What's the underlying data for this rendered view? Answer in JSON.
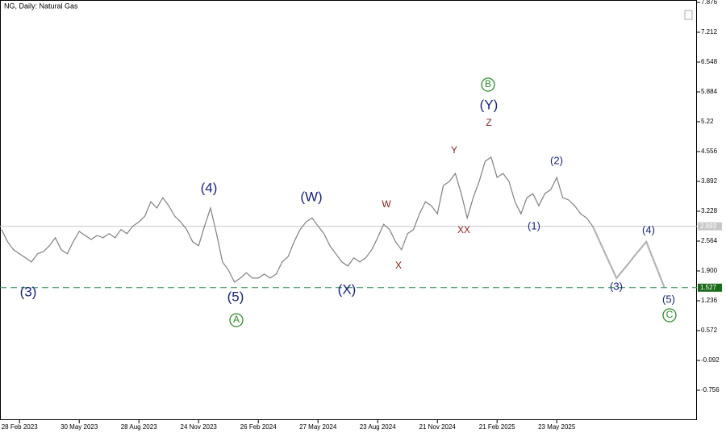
{
  "chart_data": {
    "type": "line",
    "title": "NG, Daily:  Natural Gas",
    "categories": [
      null,
      null,
      null,
      "28 Feb 2023",
      null,
      null,
      null,
      null,
      null,
      null,
      null,
      null,
      null,
      "30 May 2023",
      null,
      null,
      null,
      null,
      null,
      null,
      null,
      null,
      null,
      "28 Aug 2023",
      null,
      null,
      null,
      null,
      null,
      null,
      null,
      null,
      null,
      "24 Nov 2023",
      null,
      null,
      null,
      null,
      null,
      null,
      null,
      null,
      null,
      "26 Feb 2024",
      null,
      null,
      null,
      null,
      null,
      null,
      null,
      null,
      null,
      "27 May 2024",
      null,
      null,
      null,
      null,
      null,
      null,
      null,
      null,
      null,
      "23 Aug 2024",
      null,
      null,
      null,
      null,
      null,
      null,
      null,
      null,
      null,
      "21 Nov 2024",
      null,
      null,
      null,
      null,
      null,
      null,
      null,
      null,
      null,
      "21 Feb 2025",
      null,
      null,
      null,
      null,
      null,
      null,
      null,
      null,
      null,
      "23 May 2025",
      null,
      null,
      null,
      null,
      null,
      null,
      null,
      null,
      null,
      null,
      null,
      null,
      null,
      null,
      null,
      null,
      null,
      null
    ],
    "series": [
      {
        "color": "#808080",
        "values": [
          2.82,
          2.55,
          2.37,
          2.28,
          2.19,
          2.1,
          2.28,
          2.33,
          2.46,
          2.64,
          2.37,
          2.28,
          2.55,
          2.78,
          2.69,
          2.6,
          2.69,
          2.64,
          2.73,
          2.64,
          2.82,
          2.73,
          2.9,
          2.99,
          3.12,
          3.44,
          3.3,
          3.53,
          3.35,
          3.12,
          2.99,
          2.82,
          2.55,
          2.46,
          2.9,
          3.3,
          2.73,
          2.1,
          1.92,
          1.65,
          1.74,
          1.86,
          1.74,
          1.74,
          1.83,
          1.74,
          1.83,
          2.1,
          2.22,
          2.55,
          2.82,
          2.99,
          3.08,
          2.9,
          2.73,
          2.46,
          2.28,
          2.1,
          2.01,
          2.19,
          2.1,
          2.19,
          2.37,
          2.64,
          2.94,
          2.82,
          2.55,
          2.37,
          2.73,
          2.82,
          3.17,
          3.44,
          3.35,
          3.17,
          3.8,
          3.89,
          4.07,
          3.62,
          3.08,
          3.53,
          3.89,
          4.34,
          4.43,
          3.98,
          4.07,
          3.89,
          3.44,
          3.17,
          3.53,
          3.62,
          3.35,
          3.62,
          3.71,
          3.98,
          3.53,
          3.48,
          3.35,
          3.17,
          3.08,
          2.9,
          null,
          null,
          null,
          null,
          null,
          null,
          null,
          null,
          null,
          null,
          null,
          null
        ]
      },
      {
        "color": "#b4b4b4",
        "values": [
          null,
          null,
          null,
          null,
          null,
          null,
          null,
          null,
          null,
          null,
          null,
          null,
          null,
          null,
          null,
          null,
          null,
          null,
          null,
          null,
          null,
          null,
          null,
          null,
          null,
          null,
          null,
          null,
          null,
          null,
          null,
          null,
          null,
          null,
          null,
          null,
          null,
          null,
          null,
          null,
          null,
          null,
          null,
          null,
          null,
          null,
          null,
          null,
          null,
          null,
          null,
          null,
          null,
          null,
          null,
          null,
          null,
          null,
          null,
          null,
          null,
          null,
          null,
          null,
          null,
          null,
          null,
          null,
          null,
          null,
          null,
          null,
          null,
          null,
          null,
          null,
          null,
          null,
          null,
          null,
          null,
          null,
          null,
          null,
          null,
          null,
          null,
          null,
          null,
          null,
          null,
          null,
          null,
          null,
          null,
          null,
          null,
          null,
          null,
          2.9,
          2.61,
          2.32,
          2.03,
          1.74,
          1.9,
          2.06,
          2.23,
          2.39,
          2.55,
          2.21,
          1.88,
          1.54
        ]
      }
    ],
    "ylim": [
      -1.42,
      7.93
    ],
    "yticks": [
      7.876,
      7.212,
      6.548,
      5.884,
      5.22,
      4.556,
      3.892,
      3.228,
      2.564,
      {
        "value": 1.9,
        "label": "1.900"
      },
      1.236,
      0.572,
      -0.092,
      -0.756
    ],
    "levels": [
      {
        "value": 2.893,
        "color": "#c8c8c8",
        "box": "#c8c8c8"
      },
      {
        "value": 1.527,
        "color": "#2e8b57",
        "box": "#1a6b1a",
        "dashed": true
      }
    ],
    "annotations": [
      "(3)",
      "(4)",
      "(5)",
      "A",
      "(W)",
      "(X)",
      "W",
      "X",
      "Y",
      "XX",
      "Z",
      "(Y)",
      "B",
      "(1)",
      "(2)",
      "(3)",
      "(4)",
      "(5)",
      "C"
    ]
  }
}
